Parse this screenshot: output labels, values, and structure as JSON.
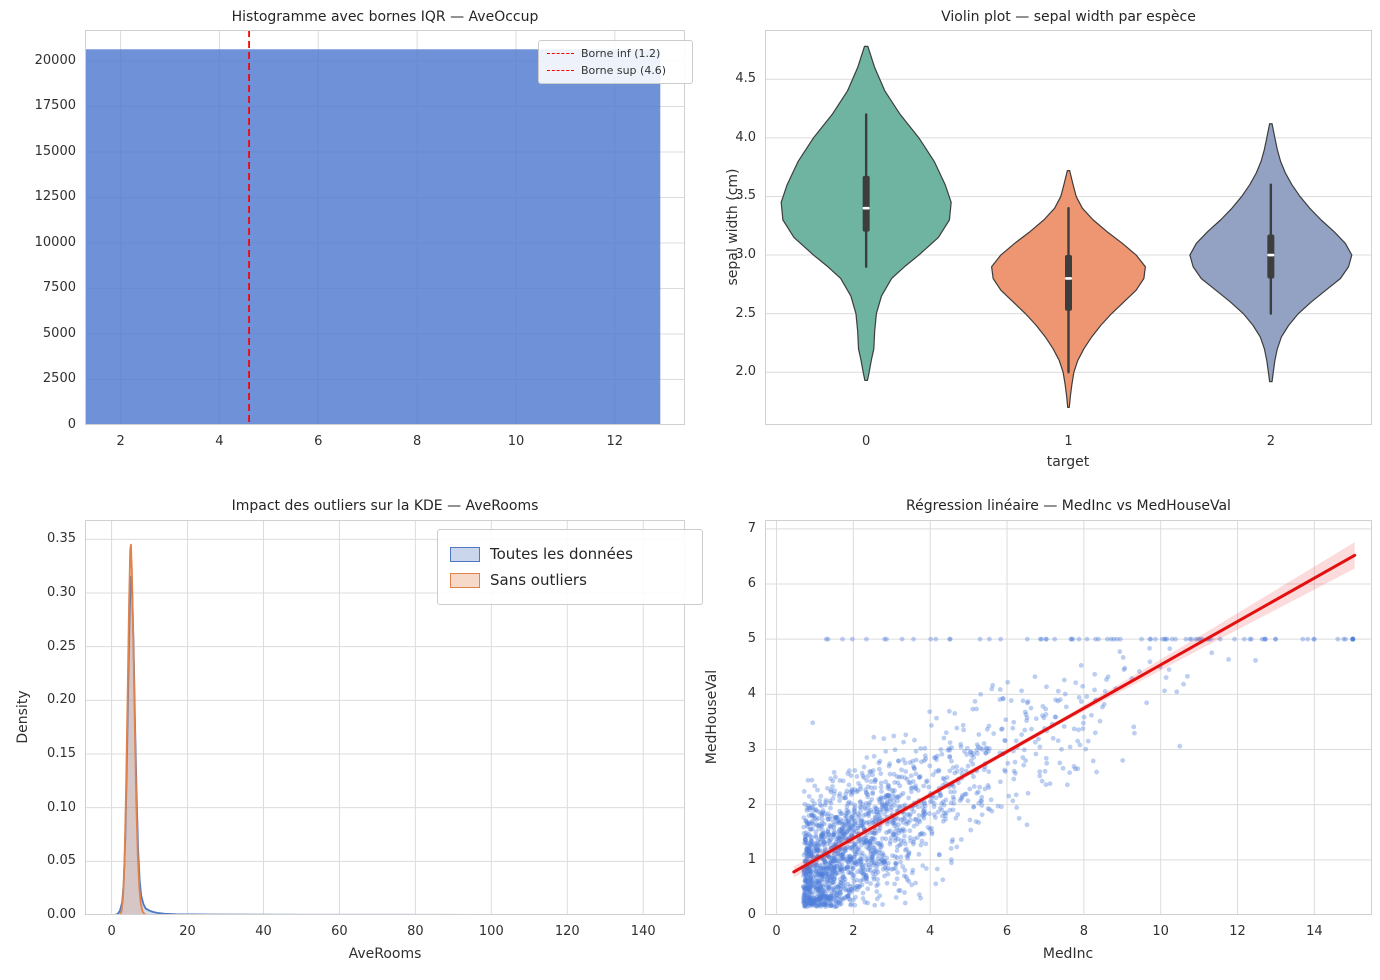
{
  "style": {
    "background": "#ffffff",
    "grid_color": "#dcdcdc",
    "axes_border_color": "#d0d0d0",
    "title_color": "#262626",
    "tick_color": "#303030"
  },
  "chart_data": [
    {
      "type": "histogram",
      "title": "Histogramme avec bornes IQR — AveOccup",
      "xlabel": "",
      "ylabel": "",
      "xlim": [
        1.28,
        13.42
      ],
      "ylim": [
        0,
        21700
      ],
      "xticks": [
        2,
        4,
        6,
        8,
        10,
        12
      ],
      "xtick_labels": [
        "2",
        "4",
        "6",
        "8",
        "10",
        "12"
      ],
      "yticks": [
        0,
        2500,
        5000,
        7500,
        10000,
        12500,
        15000,
        17500,
        20000
      ],
      "ytick_labels": [
        "0",
        "2500",
        "5000",
        "7500",
        "10000",
        "12500",
        "15000",
        "17500",
        "20000"
      ],
      "grid_vertical": true,
      "bar": {
        "x0": 1.28,
        "x1": 12.92,
        "count": 20640,
        "fill": "#4e79cf",
        "fill_opacity": 0.82
      },
      "vline_color": "#ff0000",
      "vlines": [
        {
          "x": 1.2,
          "label": "Borne inf (1.2)"
        },
        {
          "x": 4.6,
          "label": "Borne sup (4.6)"
        }
      ],
      "legend": {
        "entries": [
          {
            "label": "Borne inf (1.2)"
          },
          {
            "label": "Borne sup (4.6)"
          }
        ],
        "position": "upper right"
      }
    },
    {
      "type": "violin",
      "title": "Violin plot — sepal width par espèce",
      "xlabel": "target",
      "ylabel": "sepal width (cm)",
      "categories": [
        "0",
        "1",
        "2"
      ],
      "xlim": [
        -0.5,
        2.5
      ],
      "ylim": [
        1.55,
        4.92
      ],
      "xticks": [
        0,
        1,
        2
      ],
      "xtick_labels": [
        "0",
        "1",
        "2"
      ],
      "yticks": [
        2.0,
        2.5,
        3.0,
        3.5,
        4.0,
        4.5
      ],
      "ytick_labels": [
        "2.0",
        "2.5",
        "3.0",
        "3.5",
        "4.0",
        "4.5"
      ],
      "grid_vertical": false,
      "violin_stroke": "#3d3d3d",
      "violins": [
        {
          "category": "0",
          "color": "#6fb3a1",
          "max_half_width": 0.42,
          "stats": {
            "whisker_low": 2.9,
            "q1": 3.2,
            "median": 3.4,
            "q3": 3.675,
            "whisker_high": 4.2,
            "kde_min": 1.93,
            "kde_max": 4.78
          },
          "shape": [
            [
              4.78,
              0.02
            ],
            [
              4.6,
              0.1
            ],
            [
              4.4,
              0.22
            ],
            [
              4.2,
              0.4
            ],
            [
              4.0,
              0.62
            ],
            [
              3.8,
              0.8
            ],
            [
              3.6,
              0.93
            ],
            [
              3.45,
              1.0
            ],
            [
              3.3,
              0.98
            ],
            [
              3.15,
              0.85
            ],
            [
              3.0,
              0.62
            ],
            [
              2.9,
              0.45
            ],
            [
              2.8,
              0.3
            ],
            [
              2.65,
              0.18
            ],
            [
              2.5,
              0.12
            ],
            [
              2.35,
              0.1
            ],
            [
              2.2,
              0.09
            ],
            [
              2.1,
              0.06
            ],
            [
              2.0,
              0.035
            ],
            [
              1.93,
              0.015
            ]
          ]
        },
        {
          "category": "1",
          "color": "#ee9572",
          "max_half_width": 0.38,
          "stats": {
            "whisker_low": 2.0,
            "q1": 2.525,
            "median": 2.8,
            "q3": 3.0,
            "whisker_high": 3.4,
            "kde_min": 1.7,
            "kde_max": 3.72
          },
          "shape": [
            [
              3.72,
              0.015
            ],
            [
              3.6,
              0.06
            ],
            [
              3.5,
              0.1
            ],
            [
              3.4,
              0.18
            ],
            [
              3.3,
              0.32
            ],
            [
              3.2,
              0.5
            ],
            [
              3.1,
              0.7
            ],
            [
              3.0,
              0.88
            ],
            [
              2.9,
              1.0
            ],
            [
              2.8,
              0.98
            ],
            [
              2.7,
              0.88
            ],
            [
              2.6,
              0.72
            ],
            [
              2.5,
              0.56
            ],
            [
              2.4,
              0.42
            ],
            [
              2.3,
              0.3
            ],
            [
              2.2,
              0.2
            ],
            [
              2.1,
              0.12
            ],
            [
              2.0,
              0.07
            ],
            [
              1.9,
              0.045
            ],
            [
              1.8,
              0.025
            ],
            [
              1.7,
              0.01
            ]
          ]
        },
        {
          "category": "2",
          "color": "#93a2c3",
          "max_half_width": 0.4,
          "stats": {
            "whisker_low": 2.5,
            "q1": 2.8,
            "median": 3.0,
            "q3": 3.175,
            "whisker_high": 3.6,
            "kde_min": 1.92,
            "kde_max": 4.12
          },
          "shape": [
            [
              4.12,
              0.015
            ],
            [
              4.0,
              0.05
            ],
            [
              3.9,
              0.08
            ],
            [
              3.8,
              0.12
            ],
            [
              3.7,
              0.18
            ],
            [
              3.6,
              0.26
            ],
            [
              3.5,
              0.36
            ],
            [
              3.4,
              0.48
            ],
            [
              3.3,
              0.62
            ],
            [
              3.2,
              0.78
            ],
            [
              3.1,
              0.92
            ],
            [
              3.0,
              1.0
            ],
            [
              2.9,
              0.96
            ],
            [
              2.8,
              0.86
            ],
            [
              2.7,
              0.68
            ],
            [
              2.6,
              0.5
            ],
            [
              2.5,
              0.34
            ],
            [
              2.4,
              0.22
            ],
            [
              2.3,
              0.13
            ],
            [
              2.2,
              0.08
            ],
            [
              2.1,
              0.05
            ],
            [
              2.0,
              0.03
            ],
            [
              1.92,
              0.015
            ]
          ]
        }
      ]
    },
    {
      "type": "kde",
      "title": "Impact des outliers sur la KDE — AveRooms",
      "xlabel": "AveRooms",
      "ylabel": "Density",
      "xlim": [
        -7,
        151
      ],
      "ylim": [
        0,
        0.368
      ],
      "xticks": [
        0,
        20,
        40,
        60,
        80,
        100,
        120,
        140
      ],
      "xtick_labels": [
        "0",
        "20",
        "40",
        "60",
        "80",
        "100",
        "120",
        "140"
      ],
      "yticks": [
        0.0,
        0.05,
        0.1,
        0.15,
        0.2,
        0.25,
        0.3,
        0.35
      ],
      "ytick_labels": [
        "0.00",
        "0.05",
        "0.10",
        "0.15",
        "0.20",
        "0.25",
        "0.30",
        "0.35"
      ],
      "grid_vertical": true,
      "series": [
        {
          "name": "Toutes les données",
          "color": "#4f78c0",
          "peak": {
            "x": 5.1,
            "density": 0.315
          },
          "points": [
            [
              0.8,
              0
            ],
            [
              1.6,
              0.001
            ],
            [
              2.2,
              0.004
            ],
            [
              2.8,
              0.012
            ],
            [
              3.2,
              0.03
            ],
            [
              3.6,
              0.07
            ],
            [
              4.0,
              0.135
            ],
            [
              4.4,
              0.215
            ],
            [
              4.8,
              0.285
            ],
            [
              5.1,
              0.315
            ],
            [
              5.4,
              0.305
            ],
            [
              5.8,
              0.25
            ],
            [
              6.2,
              0.175
            ],
            [
              6.6,
              0.11
            ],
            [
              7.0,
              0.06
            ],
            [
              7.4,
              0.032
            ],
            [
              7.8,
              0.018
            ],
            [
              8.4,
              0.01
            ],
            [
              9.0,
              0.006
            ],
            [
              10.0,
              0.004
            ],
            [
              11.0,
              0.0028
            ],
            [
              12.0,
              0.002
            ],
            [
              14.0,
              0.0012
            ],
            [
              17.0,
              0.0007
            ],
            [
              25.0,
              0.0004
            ],
            [
              50.0,
              0.0002
            ],
            [
              100.0,
              0.0001
            ],
            [
              141.0,
              0
            ]
          ]
        },
        {
          "name": "Sans outliers",
          "color": "#e0824a",
          "peak": {
            "x": 5.1,
            "density": 0.345
          },
          "points": [
            [
              2.1,
              0
            ],
            [
              2.6,
              0.003
            ],
            [
              3.0,
              0.015
            ],
            [
              3.4,
              0.05
            ],
            [
              3.8,
              0.115
            ],
            [
              4.2,
              0.2
            ],
            [
              4.6,
              0.29
            ],
            [
              4.9,
              0.34
            ],
            [
              5.1,
              0.345
            ],
            [
              5.35,
              0.32
            ],
            [
              5.7,
              0.26
            ],
            [
              6.1,
              0.18
            ],
            [
              6.5,
              0.105
            ],
            [
              6.9,
              0.055
            ],
            [
              7.3,
              0.025
            ],
            [
              7.7,
              0.01
            ],
            [
              8.2,
              0.003
            ],
            [
              8.8,
              0.0005
            ],
            [
              9.3,
              0
            ]
          ]
        }
      ],
      "legend": {
        "position": "upper right"
      }
    },
    {
      "type": "scatter_regression",
      "title": "Régression linéaire — MedInc vs MedHouseVal",
      "xlabel": "MedInc",
      "ylabel": "MedHouseVal",
      "xlim": [
        -0.3,
        15.5
      ],
      "ylim": [
        0,
        7.16
      ],
      "xticks": [
        0,
        2,
        4,
        6,
        8,
        10,
        12,
        14
      ],
      "xtick_labels": [
        "0",
        "2",
        "4",
        "6",
        "8",
        "10",
        "12",
        "14"
      ],
      "yticks": [
        0,
        1,
        2,
        3,
        4,
        5,
        6,
        7
      ],
      "ytick_labels": [
        "0",
        "1",
        "2",
        "3",
        "4",
        "5",
        "6",
        "7"
      ],
      "grid_vertical": true,
      "point_color": "#4f7dd9",
      "point_opacity": 0.38,
      "point_radius": 2.4,
      "cap_value": 5.0,
      "scatter_generator": {
        "seed": 42,
        "n_points": 1800,
        "x_offset": 0.7,
        "x_scale": 2.3,
        "x_shape_lo": 0.6,
        "x_shape_hi": 1.1,
        "x_max": 15.0,
        "slope": 0.4,
        "intercept": 0.45,
        "noise_sd": 0.62,
        "y_floor": 0.15,
        "cap_threshold": 4.88,
        "cap_row_extra": 55,
        "cap_row_x_min": 0.9,
        "cap_row_x_max": 15.0,
        "far_right_cluster": {
          "x": 15.0,
          "y": 5.0,
          "n": 6
        }
      },
      "regression": {
        "color": "#e31010",
        "x0": 0.45,
        "y0": 0.78,
        "x1": 15.05,
        "y1": 6.52,
        "band_color": "rgba(227,16,16,0.15)",
        "band": [
          [
            0.45,
            0.1
          ],
          [
            4.0,
            0.05
          ],
          [
            7.5,
            0.045
          ],
          [
            11.0,
            0.12
          ],
          [
            15.05,
            0.24
          ]
        ]
      }
    }
  ]
}
